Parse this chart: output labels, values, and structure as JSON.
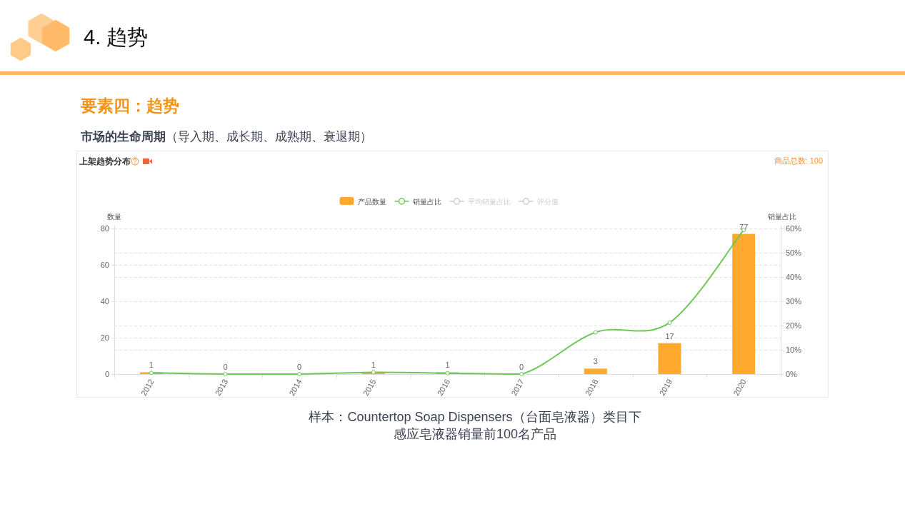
{
  "chart_data": {
    "type": "bar",
    "title": "上架趋势分布",
    "categories": [
      "2012",
      "2013",
      "2014",
      "2015",
      "2016",
      "2017",
      "2018",
      "2019",
      "2020"
    ],
    "ylabel": "数量",
    "y2label": "销量占比",
    "ylim": [
      0,
      80
    ],
    "yticks": [
      0,
      20,
      40,
      60,
      80
    ],
    "y2lim": [
      0,
      60
    ],
    "y2ticks": [
      {
        "value": 0,
        "label": "0%"
      },
      {
        "value": 10,
        "label": "10%"
      },
      {
        "value": 20,
        "label": "20%"
      },
      {
        "value": 30,
        "label": "30%"
      },
      {
        "value": 40,
        "label": "40%"
      },
      {
        "value": 50,
        "label": "50%"
      },
      {
        "value": 60,
        "label": "60%"
      }
    ],
    "series": [
      {
        "name": "产品数量",
        "color": "#ffa92e",
        "values": [
          1,
          0,
          0,
          1,
          1,
          0,
          3,
          17,
          77
        ],
        "value_labels": [
          "1",
          "0",
          "0",
          "1",
          "1",
          "0",
          "3",
          "17",
          "77"
        ]
      },
      {
        "name": "销量占比",
        "type": "line",
        "axis": "y2",
        "color": "#6cc956",
        "values": [
          0.5,
          0,
          0,
          0.7,
          0.4,
          0,
          17.2,
          21.2,
          59.4
        ]
      },
      {
        "name": "平均销量占比",
        "type": "line",
        "axis": "y2",
        "color": "#cccccc",
        "values": [
          null,
          null,
          null,
          null,
          null,
          null,
          null,
          null,
          null
        ]
      },
      {
        "name": "评分值",
        "type": "line",
        "axis": "y2",
        "color": "#cccccc",
        "values": [
          null,
          null,
          null,
          null,
          null,
          null,
          null,
          null,
          null
        ]
      }
    ],
    "legend": "top",
    "grid": "y",
    "marker": "circle",
    "annotations": [
      "4. 趋势",
      "要素四：趋势",
      "市场的生命周期",
      "（导入期、成长期、成熟期、衰退期）",
      "商品总数: 100",
      "样本：Countertop Soap Dispensers（台面皂液器）类目下",
      "感应皂液器销量前100名产品"
    ]
  }
}
